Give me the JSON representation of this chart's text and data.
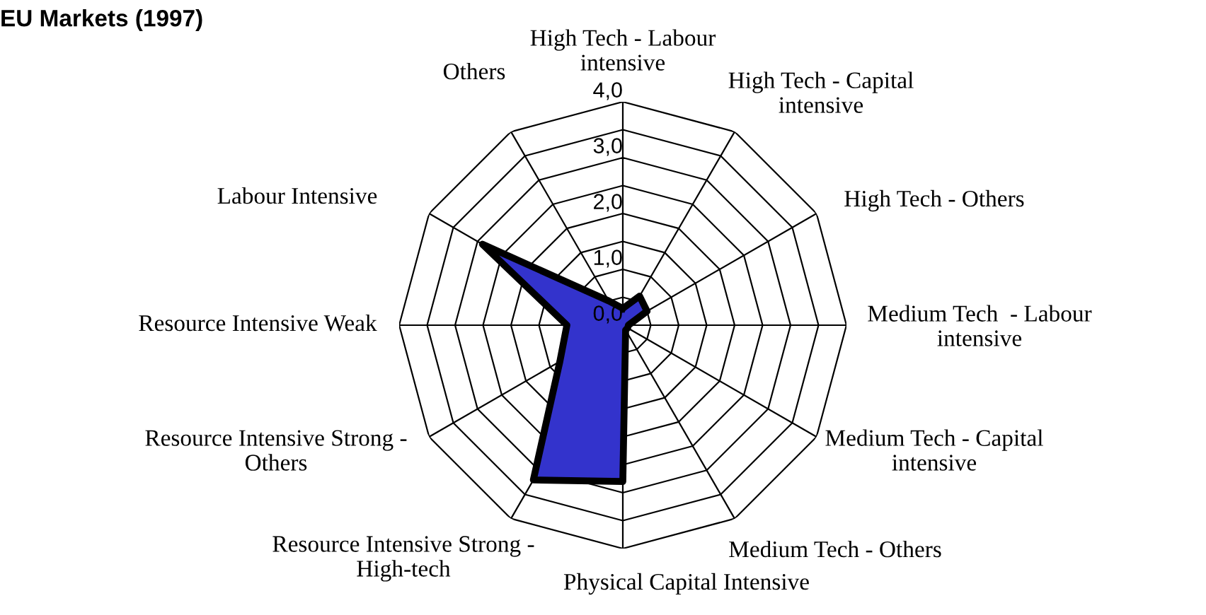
{
  "chart_data": {
    "type": "radar",
    "title": "EU Markets (1997)",
    "categories": [
      "High Tech - Labour\nintensive",
      "High Tech - Capital\nintensive",
      "High Tech - Others",
      "Medium Tech  - Labour\nintensive",
      "Medium Tech - Capital\nintensive",
      "Medium Tech - Others",
      "Physical Capital Intensive",
      "Resource Intensive Strong -\nHigh-tech",
      "Resource Intensive Strong -\nOthers",
      "Resource Intensive Weak",
      "Labour Intensive",
      "Others"
    ],
    "series": [
      {
        "color": "#3333cc",
        "values": [
          0.3,
          0.6,
          0.5,
          0.1,
          0.1,
          0.1,
          2.8,
          3.2,
          1.3,
          1.0,
          2.9,
          0.5
        ]
      }
    ],
    "ylim": [
      0,
      4.0
    ],
    "yticks": [
      {
        "value": 0,
        "label": "0,0"
      },
      {
        "value": 1.0,
        "label": "1,0"
      },
      {
        "value": 2.0,
        "label": "2,0"
      },
      {
        "value": 3.0,
        "label": "3,0"
      },
      {
        "value": 4.0,
        "label": "4,0"
      }
    ],
    "grid": true
  }
}
